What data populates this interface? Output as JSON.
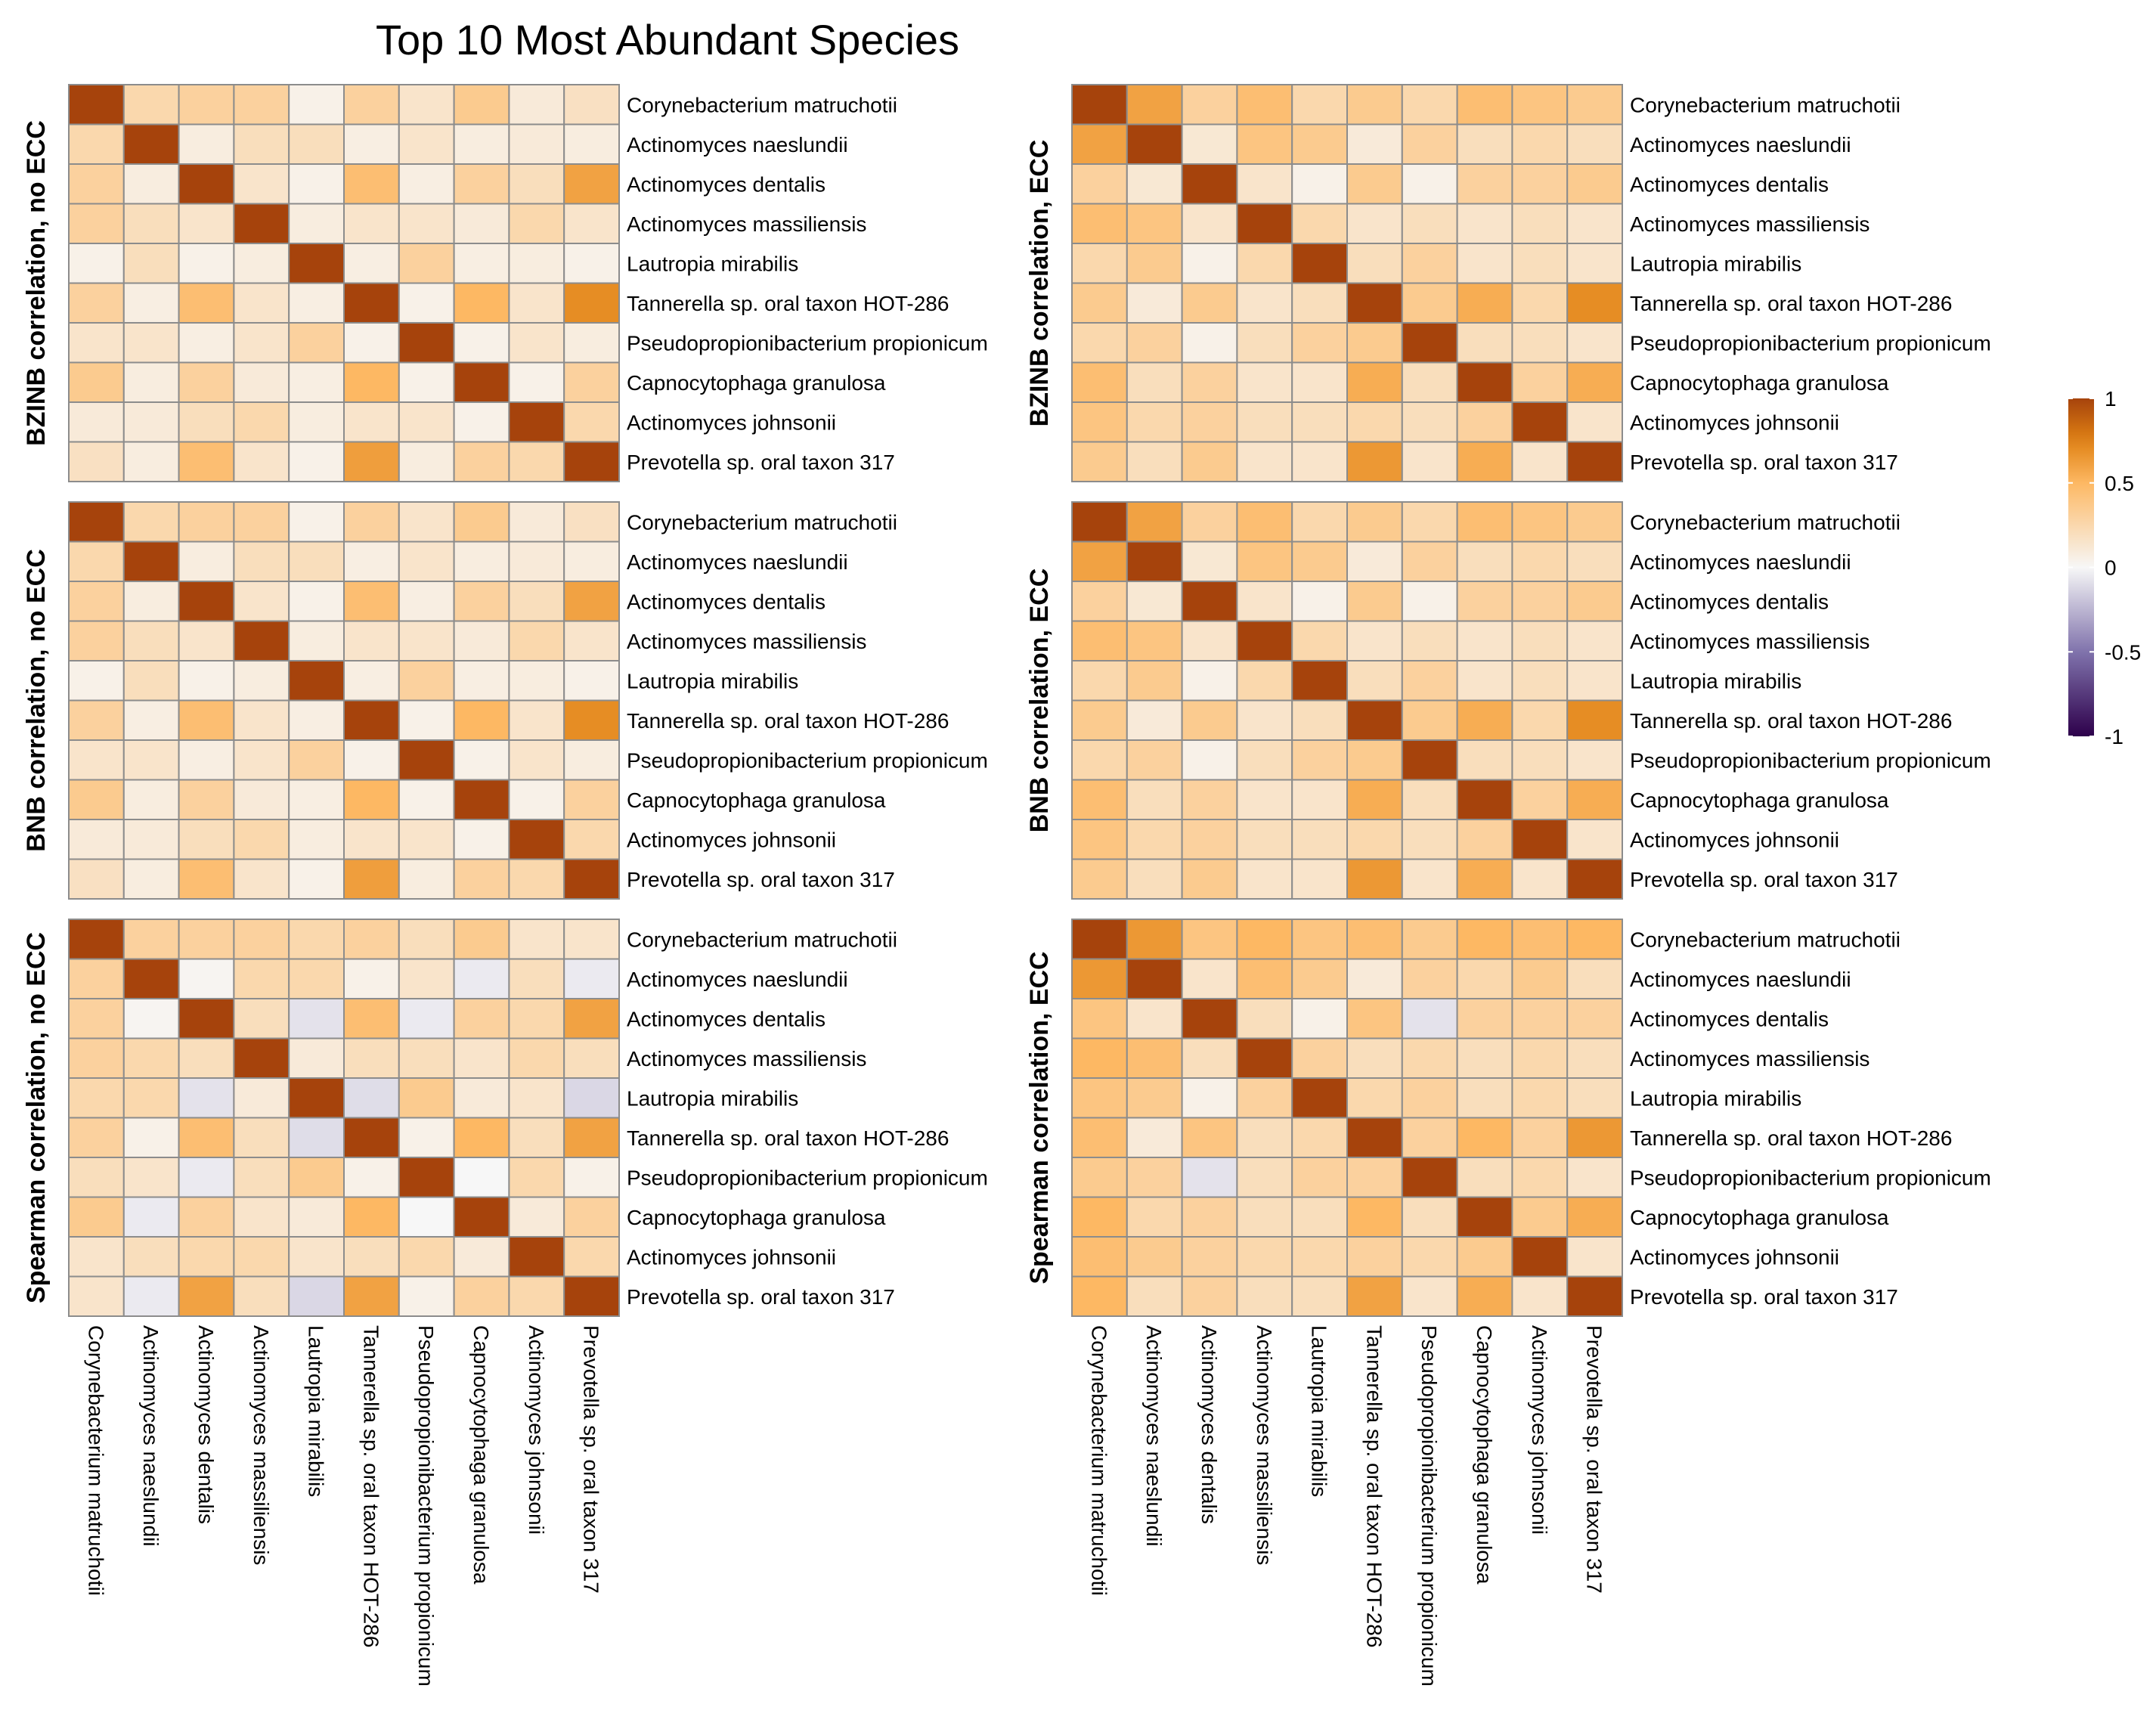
{
  "chart_data": {
    "type": "heatmap",
    "title": "Top 10 Most Abundant Species",
    "species": [
      "Corynebacterium matruchotii",
      "Actinomyces naeslundii",
      "Actinomyces dentalis",
      "Actinomyces massiliensis",
      "Lautropia mirabilis",
      "Tannerella sp. oral taxon HOT-286",
      "Pseudopropionibacterium propionicum",
      "Capnocytophaga granulosa",
      "Actinomyces johnsonii",
      "Prevotella sp. oral taxon 317"
    ],
    "color_scale": {
      "min": -1,
      "max": 1,
      "ticks": [
        "1",
        "0.5",
        "0",
        "-0.5",
        "-1"
      ],
      "tick_values": [
        1,
        0.5,
        0,
        -0.5,
        -1
      ],
      "colors": [
        "#2d004b",
        "#8073ac",
        "#f7f7f7",
        "#fdb863",
        "#e08214",
        "#a6430c"
      ]
    },
    "panels": [
      {
        "label": "BZINB correlation, no ECC",
        "matrix": [
          [
            1.0,
            0.25,
            0.3,
            0.3,
            0.05,
            0.3,
            0.15,
            0.35,
            0.1,
            0.18
          ],
          [
            0.25,
            1.0,
            0.08,
            0.2,
            0.2,
            0.07,
            0.15,
            0.08,
            0.1,
            0.08
          ],
          [
            0.3,
            0.08,
            1.0,
            0.15,
            0.05,
            0.45,
            0.07,
            0.3,
            0.2,
            0.6
          ],
          [
            0.3,
            0.2,
            0.15,
            1.0,
            0.08,
            0.15,
            0.15,
            0.1,
            0.25,
            0.15
          ],
          [
            0.05,
            0.2,
            0.05,
            0.08,
            1.0,
            0.07,
            0.3,
            0.07,
            0.08,
            0.05
          ],
          [
            0.3,
            0.07,
            0.45,
            0.15,
            0.07,
            1.0,
            0.05,
            0.5,
            0.15,
            0.7
          ],
          [
            0.15,
            0.15,
            0.07,
            0.15,
            0.3,
            0.05,
            1.0,
            0.05,
            0.15,
            0.08
          ],
          [
            0.35,
            0.08,
            0.3,
            0.1,
            0.07,
            0.5,
            0.05,
            1.0,
            0.05,
            0.3
          ],
          [
            0.1,
            0.1,
            0.2,
            0.25,
            0.08,
            0.15,
            0.15,
            0.05,
            1.0,
            0.25
          ],
          [
            0.18,
            0.08,
            0.45,
            0.15,
            0.05,
            0.62,
            0.08,
            0.3,
            0.25,
            1.0
          ]
        ]
      },
      {
        "label": "BZINB correlation, ECC",
        "matrix": [
          [
            1.0,
            0.6,
            0.3,
            0.45,
            0.25,
            0.35,
            0.25,
            0.45,
            0.4,
            0.35
          ],
          [
            0.6,
            1.0,
            0.12,
            0.4,
            0.35,
            0.1,
            0.3,
            0.2,
            0.25,
            0.2
          ],
          [
            0.3,
            0.12,
            1.0,
            0.15,
            0.05,
            0.35,
            0.05,
            0.3,
            0.3,
            0.35
          ],
          [
            0.45,
            0.4,
            0.15,
            1.0,
            0.25,
            0.15,
            0.2,
            0.15,
            0.2,
            0.15
          ],
          [
            0.25,
            0.35,
            0.05,
            0.25,
            1.0,
            0.2,
            0.3,
            0.15,
            0.2,
            0.15
          ],
          [
            0.35,
            0.1,
            0.35,
            0.15,
            0.2,
            1.0,
            0.35,
            0.55,
            0.25,
            0.7
          ],
          [
            0.25,
            0.3,
            0.05,
            0.2,
            0.3,
            0.35,
            1.0,
            0.2,
            0.2,
            0.15
          ],
          [
            0.45,
            0.2,
            0.3,
            0.15,
            0.15,
            0.55,
            0.2,
            1.0,
            0.3,
            0.55
          ],
          [
            0.4,
            0.25,
            0.3,
            0.2,
            0.2,
            0.25,
            0.2,
            0.3,
            1.0,
            0.15
          ],
          [
            0.35,
            0.2,
            0.35,
            0.15,
            0.15,
            0.65,
            0.15,
            0.55,
            0.15,
            1.0
          ]
        ]
      },
      {
        "label": "BNB correlation, no ECC",
        "matrix": [
          [
            1.0,
            0.25,
            0.3,
            0.3,
            0.05,
            0.3,
            0.15,
            0.35,
            0.1,
            0.18
          ],
          [
            0.25,
            1.0,
            0.08,
            0.2,
            0.2,
            0.07,
            0.15,
            0.08,
            0.1,
            0.08
          ],
          [
            0.3,
            0.08,
            1.0,
            0.15,
            0.05,
            0.45,
            0.07,
            0.3,
            0.2,
            0.6
          ],
          [
            0.3,
            0.2,
            0.15,
            1.0,
            0.08,
            0.15,
            0.15,
            0.1,
            0.25,
            0.15
          ],
          [
            0.05,
            0.2,
            0.05,
            0.08,
            1.0,
            0.07,
            0.3,
            0.07,
            0.08,
            0.05
          ],
          [
            0.3,
            0.07,
            0.45,
            0.15,
            0.07,
            1.0,
            0.05,
            0.5,
            0.15,
            0.7
          ],
          [
            0.15,
            0.15,
            0.07,
            0.15,
            0.3,
            0.05,
            1.0,
            0.05,
            0.15,
            0.08
          ],
          [
            0.35,
            0.08,
            0.3,
            0.1,
            0.07,
            0.5,
            0.05,
            1.0,
            0.05,
            0.3
          ],
          [
            0.1,
            0.1,
            0.2,
            0.25,
            0.08,
            0.15,
            0.15,
            0.05,
            1.0,
            0.25
          ],
          [
            0.18,
            0.08,
            0.45,
            0.15,
            0.05,
            0.62,
            0.08,
            0.3,
            0.25,
            1.0
          ]
        ]
      },
      {
        "label": "BNB correlation, ECC",
        "matrix": [
          [
            1.0,
            0.6,
            0.3,
            0.45,
            0.25,
            0.35,
            0.25,
            0.45,
            0.4,
            0.35
          ],
          [
            0.6,
            1.0,
            0.12,
            0.4,
            0.35,
            0.1,
            0.3,
            0.2,
            0.25,
            0.2
          ],
          [
            0.3,
            0.12,
            1.0,
            0.15,
            0.05,
            0.35,
            0.05,
            0.3,
            0.3,
            0.35
          ],
          [
            0.45,
            0.4,
            0.15,
            1.0,
            0.25,
            0.15,
            0.2,
            0.15,
            0.2,
            0.15
          ],
          [
            0.25,
            0.35,
            0.05,
            0.25,
            1.0,
            0.2,
            0.3,
            0.15,
            0.2,
            0.15
          ],
          [
            0.35,
            0.1,
            0.35,
            0.15,
            0.2,
            1.0,
            0.35,
            0.55,
            0.25,
            0.7
          ],
          [
            0.25,
            0.3,
            0.05,
            0.2,
            0.3,
            0.35,
            1.0,
            0.2,
            0.2,
            0.15
          ],
          [
            0.45,
            0.2,
            0.3,
            0.15,
            0.15,
            0.55,
            0.2,
            1.0,
            0.3,
            0.55
          ],
          [
            0.4,
            0.25,
            0.3,
            0.2,
            0.2,
            0.25,
            0.2,
            0.3,
            1.0,
            0.15
          ],
          [
            0.35,
            0.2,
            0.35,
            0.15,
            0.15,
            0.65,
            0.15,
            0.55,
            0.15,
            1.0
          ]
        ]
      },
      {
        "label": "Spearman correlation, no ECC",
        "matrix": [
          [
            1.0,
            0.3,
            0.3,
            0.3,
            0.25,
            0.3,
            0.2,
            0.35,
            0.15,
            0.15
          ],
          [
            0.3,
            1.0,
            0.02,
            0.25,
            0.25,
            0.05,
            0.15,
            -0.05,
            0.2,
            -0.05
          ],
          [
            0.3,
            0.02,
            1.0,
            0.2,
            -0.08,
            0.45,
            -0.05,
            0.3,
            0.25,
            0.6
          ],
          [
            0.3,
            0.25,
            0.2,
            1.0,
            0.1,
            0.2,
            0.2,
            0.15,
            0.25,
            0.2
          ],
          [
            0.25,
            0.25,
            -0.08,
            0.1,
            1.0,
            -0.1,
            0.35,
            0.1,
            0.15,
            -0.12
          ],
          [
            0.3,
            0.05,
            0.45,
            0.2,
            -0.1,
            1.0,
            0.05,
            0.5,
            0.2,
            0.6
          ],
          [
            0.2,
            0.15,
            -0.05,
            0.2,
            0.35,
            0.05,
            1.0,
            0.0,
            0.25,
            0.05
          ],
          [
            0.35,
            -0.05,
            0.3,
            0.15,
            0.1,
            0.5,
            0.0,
            1.0,
            0.1,
            0.3
          ],
          [
            0.15,
            0.2,
            0.25,
            0.25,
            0.15,
            0.2,
            0.25,
            0.1,
            1.0,
            0.25
          ],
          [
            0.15,
            -0.05,
            0.6,
            0.2,
            -0.12,
            0.6,
            0.05,
            0.3,
            0.25,
            1.0
          ]
        ]
      },
      {
        "label": "Spearman correlation, ECC",
        "matrix": [
          [
            1.0,
            0.65,
            0.4,
            0.5,
            0.4,
            0.45,
            0.35,
            0.5,
            0.45,
            0.5
          ],
          [
            0.65,
            1.0,
            0.15,
            0.45,
            0.35,
            0.1,
            0.3,
            0.25,
            0.35,
            0.2
          ],
          [
            0.4,
            0.15,
            1.0,
            0.2,
            0.05,
            0.4,
            -0.08,
            0.3,
            0.3,
            0.3
          ],
          [
            0.5,
            0.45,
            0.2,
            1.0,
            0.3,
            0.2,
            0.25,
            0.2,
            0.25,
            0.2
          ],
          [
            0.4,
            0.35,
            0.05,
            0.3,
            1.0,
            0.25,
            0.3,
            0.2,
            0.25,
            0.2
          ],
          [
            0.45,
            0.1,
            0.4,
            0.2,
            0.25,
            1.0,
            0.3,
            0.5,
            0.3,
            0.65
          ],
          [
            0.35,
            0.3,
            -0.08,
            0.2,
            0.3,
            0.3,
            1.0,
            0.2,
            0.25,
            0.15
          ],
          [
            0.5,
            0.25,
            0.3,
            0.2,
            0.2,
            0.5,
            0.2,
            1.0,
            0.35,
            0.55
          ],
          [
            0.45,
            0.35,
            0.3,
            0.25,
            0.25,
            0.3,
            0.25,
            0.35,
            1.0,
            0.15
          ],
          [
            0.5,
            0.2,
            0.3,
            0.2,
            0.2,
            0.6,
            0.15,
            0.55,
            0.15,
            1.0
          ]
        ]
      }
    ]
  }
}
